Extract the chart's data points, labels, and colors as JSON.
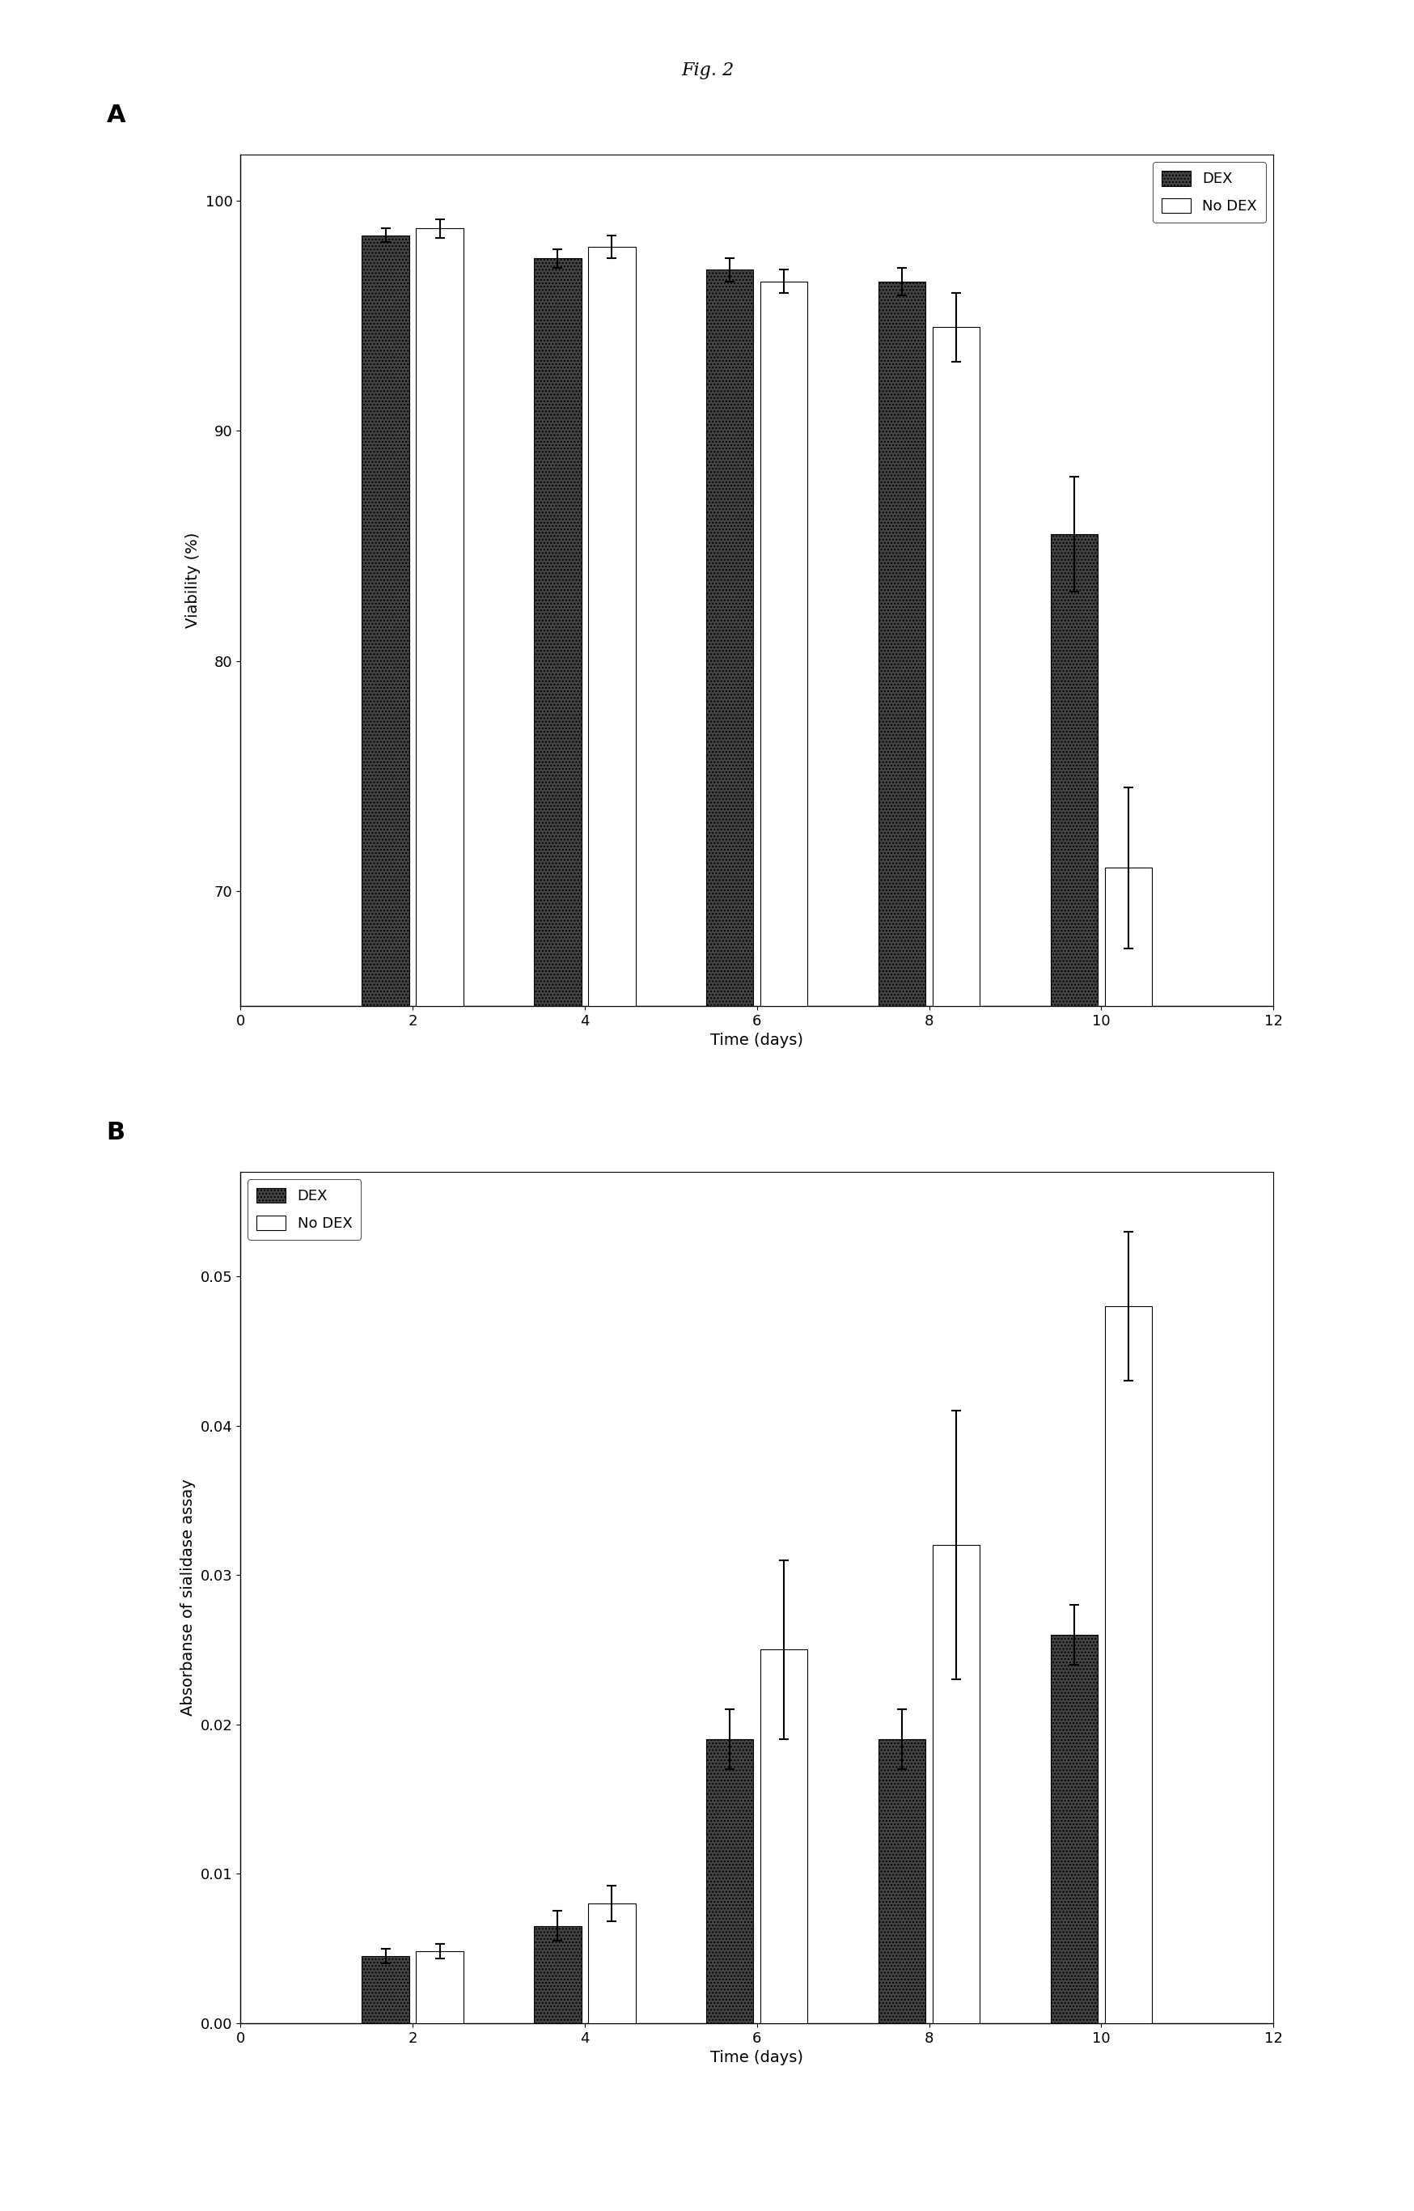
{
  "fig_title": "Fig. 2",
  "panel_A": {
    "label": "A",
    "days": [
      2,
      4,
      6,
      8,
      10
    ],
    "dex_values": [
      98.5,
      97.5,
      97.0,
      96.5,
      85.5
    ],
    "nodex_values": [
      98.8,
      98.0,
      96.5,
      94.5,
      71.0
    ],
    "dex_errors": [
      0.3,
      0.4,
      0.5,
      0.6,
      2.5
    ],
    "nodex_errors": [
      0.4,
      0.5,
      0.5,
      1.5,
      3.5
    ],
    "ylabel": "Viability (%)",
    "xlabel": "Time (days)",
    "xlim": [
      0,
      12
    ],
    "ylim": [
      65,
      102
    ],
    "yticks": [
      70,
      80,
      90,
      100
    ],
    "xticks": [
      0,
      2,
      4,
      6,
      8,
      10,
      12
    ]
  },
  "panel_B": {
    "label": "B",
    "days": [
      2,
      4,
      6,
      8,
      10
    ],
    "dex_values": [
      0.0045,
      0.0065,
      0.019,
      0.019,
      0.026
    ],
    "nodex_values": [
      0.0048,
      0.008,
      0.025,
      0.032,
      0.048
    ],
    "dex_errors": [
      0.0005,
      0.001,
      0.002,
      0.002,
      0.002
    ],
    "nodex_errors": [
      0.0005,
      0.0012,
      0.006,
      0.009,
      0.005
    ],
    "ylabel": "Absorbanse of sialidase assay",
    "xlabel": "Time (days)",
    "xlim": [
      0,
      12
    ],
    "ylim": [
      0.0,
      0.057
    ],
    "yticks": [
      0.0,
      0.01,
      0.02,
      0.03,
      0.04,
      0.05
    ],
    "xticks": [
      0,
      2,
      4,
      6,
      8,
      10,
      12
    ]
  },
  "dex_color": "#444444",
  "nodex_color": "#ffffff",
  "dex_edgecolor": "#000000",
  "nodex_edgecolor": "#000000",
  "bar_width": 0.55,
  "bar_gap": 0.08,
  "legend_dex": "DEX",
  "legend_nodex": "No DEX",
  "fig_title_fontsize": 16,
  "axis_label_fontsize": 14,
  "tick_fontsize": 13,
  "legend_fontsize": 13,
  "panel_label_fontsize": 22
}
